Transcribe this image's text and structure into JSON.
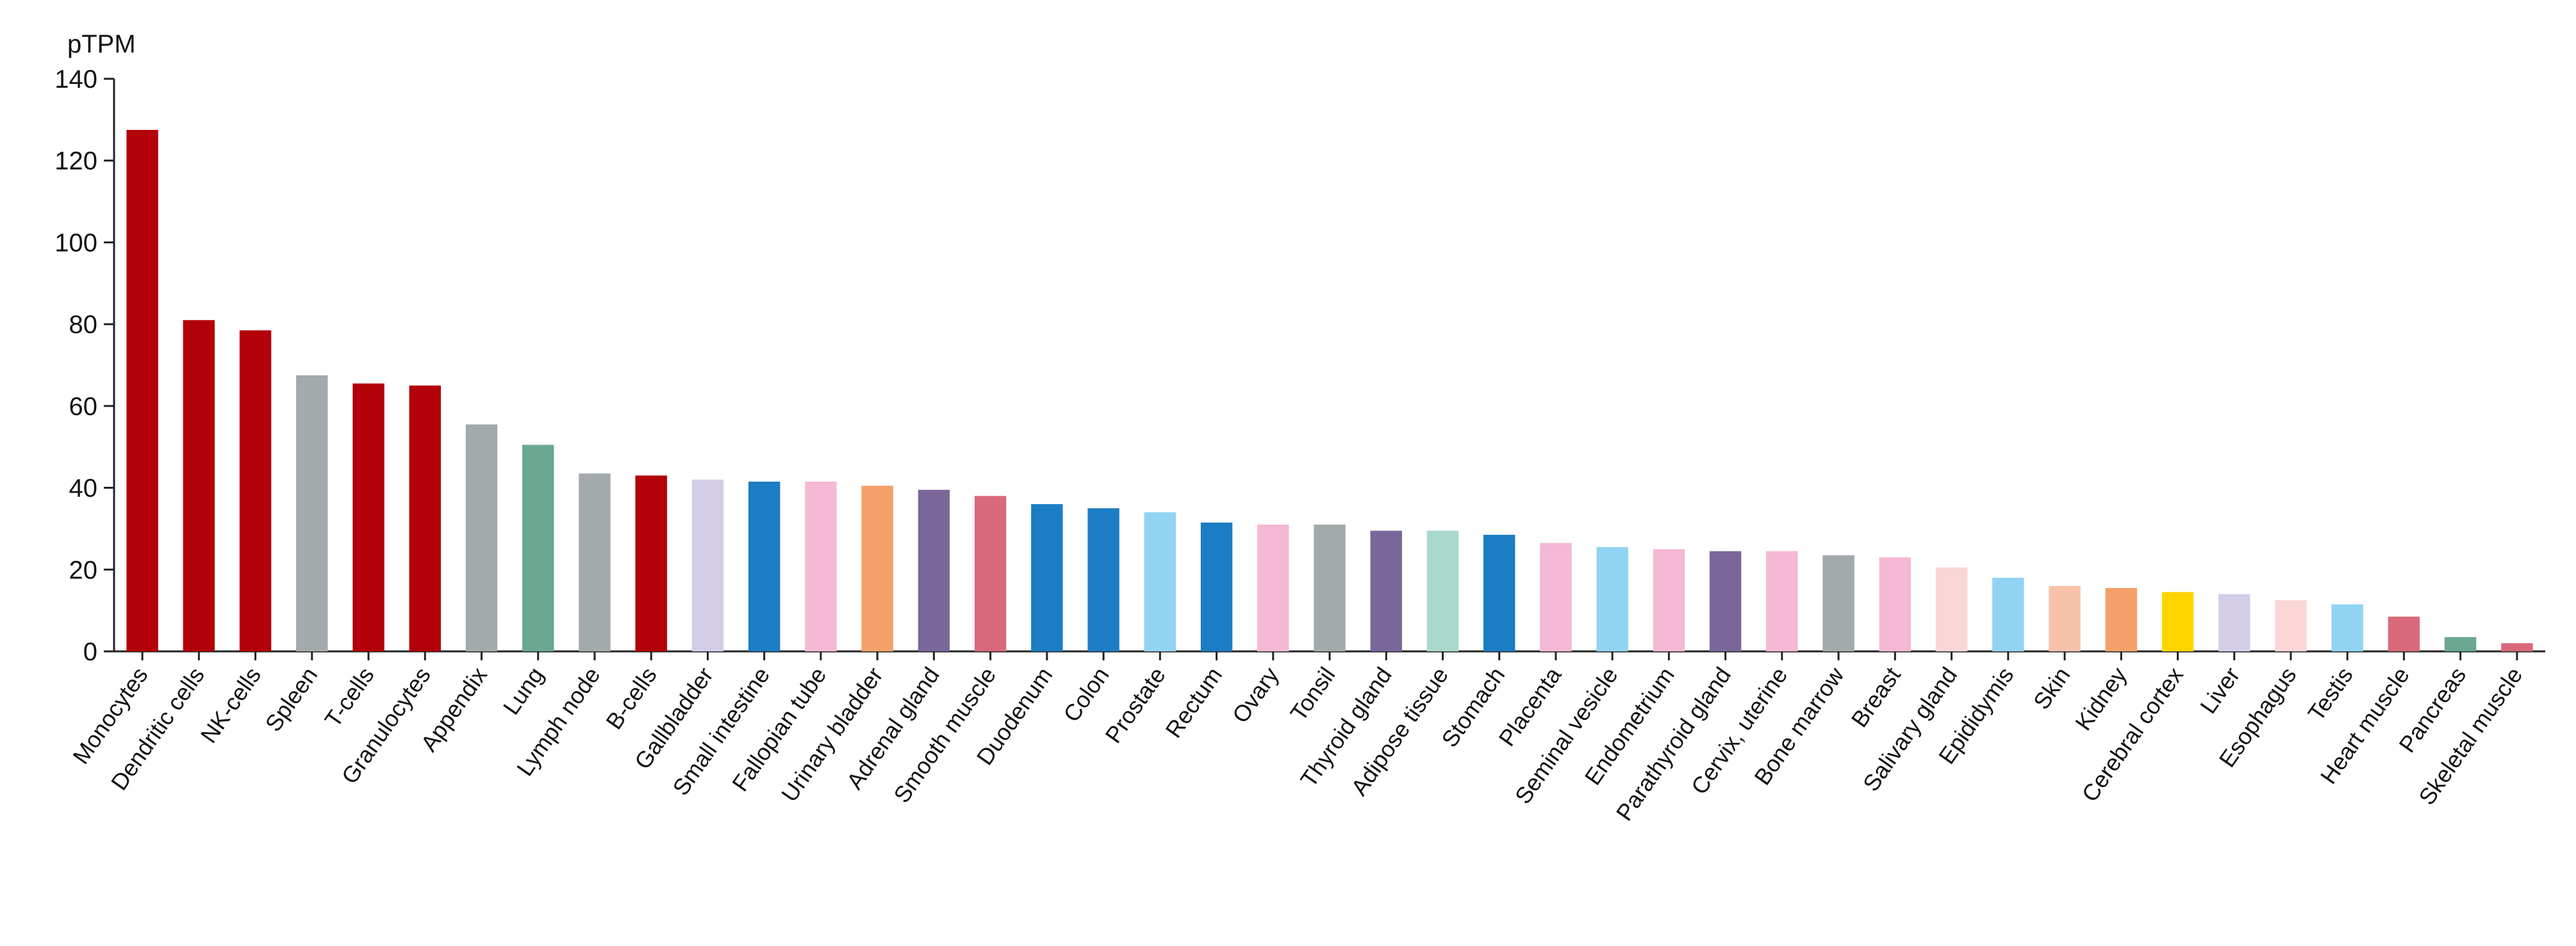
{
  "chart_data": {
    "type": "bar",
    "title": "",
    "xlabel": "",
    "ylabel": "pTPM",
    "ylim": [
      0,
      140
    ],
    "yticks": [
      0,
      20,
      40,
      60,
      80,
      100,
      120,
      140
    ],
    "grid": false,
    "categories": [
      "Monocytes",
      "Dendritic cells",
      "NK-cells",
      "Spleen",
      "T-cells",
      "Granulocytes",
      "Appendix",
      "Lung",
      "Lymph node",
      "B-cells",
      "Gallbladder",
      "Small intestine",
      "Fallopian tube",
      "Urinary bladder",
      "Adrenal gland",
      "Smooth muscle",
      "Duodenum",
      "Colon",
      "Prostate",
      "Rectum",
      "Ovary",
      "Tonsil",
      "Thyroid gland",
      "Adipose tissue",
      "Stomach",
      "Placenta",
      "Seminal vesicle",
      "Endometrium",
      "Parathyroid gland",
      "Cervix, uterine",
      "Bone marrow",
      "Breast",
      "Salivary gland",
      "Epididymis",
      "Skin",
      "Kidney",
      "Cerebral cortex",
      "Liver",
      "Esophagus",
      "Testis",
      "Heart muscle",
      "Pancreas",
      "Skeletal muscle"
    ],
    "values": [
      127.5,
      81,
      78.5,
      67.5,
      65.5,
      65,
      55.5,
      50.5,
      43.5,
      43,
      42,
      41.5,
      41.5,
      40.5,
      39.5,
      38,
      36,
      35,
      34,
      31.5,
      31,
      31,
      29.5,
      29.5,
      28.5,
      26.5,
      25.5,
      25,
      24.5,
      24.5,
      23.5,
      23,
      20.5,
      18,
      16,
      15.5,
      14.5,
      14,
      12.5,
      11.5,
      8.5,
      3.5,
      2
    ],
    "colors": [
      "#b30009",
      "#b30009",
      "#b30009",
      "#a3aaab",
      "#b30009",
      "#b30009",
      "#a3aaab",
      "#6aa891",
      "#a3aaab",
      "#b30009",
      "#d3cde8",
      "#1b7dc4",
      "#f5b8d5",
      "#f5a068",
      "#7b6699",
      "#d9697a",
      "#1b7dc4",
      "#1b7dc4",
      "#91d3f2",
      "#1b7dc4",
      "#f5b8d5",
      "#a3aaab",
      "#7b6699",
      "#a8d9cc",
      "#1b7dc4",
      "#f5b8d5",
      "#91d3f2",
      "#f5b8d5",
      "#7b6699",
      "#f5b8d5",
      "#a3aaab",
      "#f5b8d5",
      "#fad6d6",
      "#91d3f2",
      "#f7c1aa",
      "#f5a068",
      "#ffd500",
      "#d3cde8",
      "#fad6d6",
      "#91d3f2",
      "#d9697a",
      "#6aa891",
      "#d9697a"
    ]
  }
}
